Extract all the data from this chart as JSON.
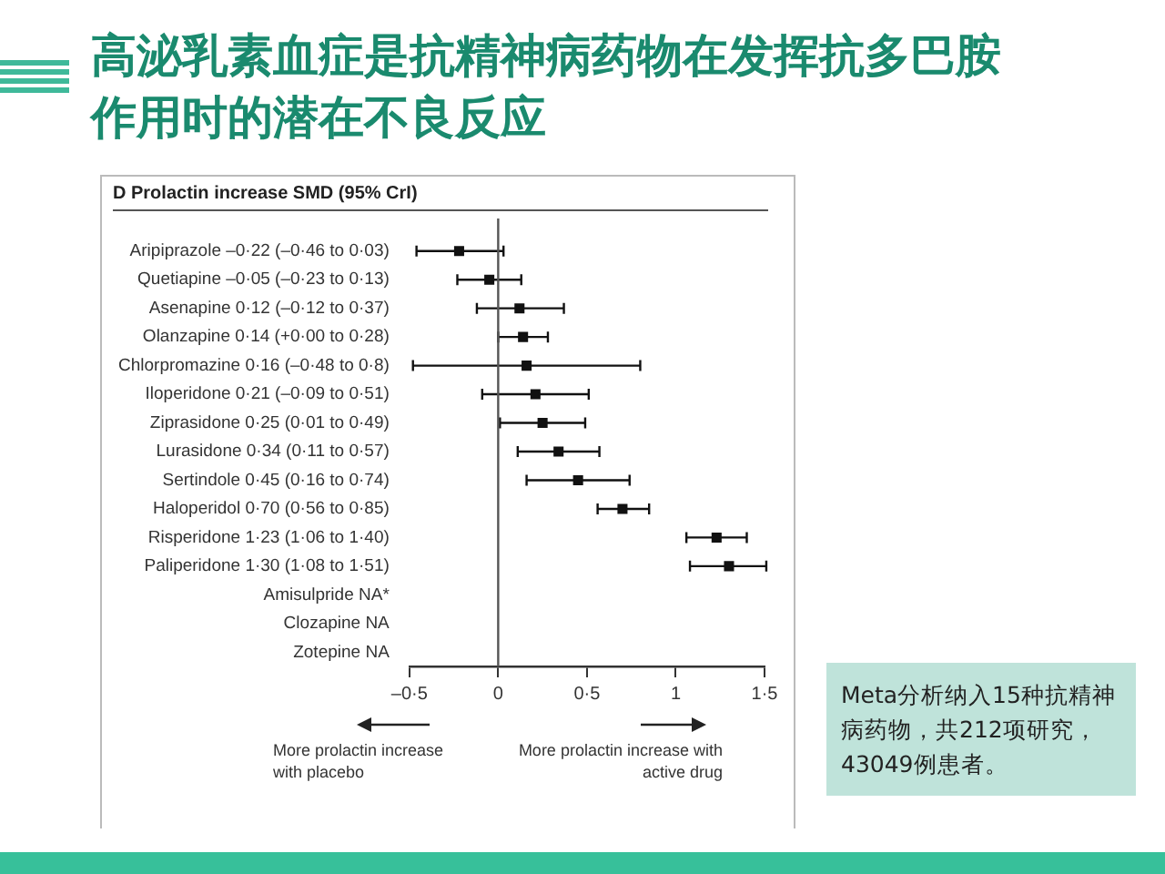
{
  "chart_data": {
    "type": "scatter",
    "orientation": "horizontal",
    "title": "高泌乳素血症是抗精神病药物在发挥抗多巴胺作用时的潜在不良反应",
    "subtitle": "D Prolactin increase SMD (95% CrI)",
    "categories": [
      "Aripiprazole –0·22 (–0·46 to 0·03)",
      "Quetiapine –0·05 (–0·23 to 0·13)",
      "Asenapine 0·12 (–0·12 to 0·37)",
      "Olanzapine 0·14 (+0·00 to 0·28)",
      "Chlorpromazine 0·16 (–0·48 to 0·8)",
      "Iloperidone 0·21 (–0·09 to 0·51)",
      "Ziprasidone 0·25 (0·01 to 0·49)",
      "Lurasidone 0·34 (0·11 to 0·57)",
      "Sertindole 0·45 (0·16 to 0·74)",
      "Haloperidol 0·70 (0·56 to 0·85)",
      "Risperidone 1·23 (1·06 to 1·40)",
      "Paliperidone 1·30 (1·08 to 1·51)",
      "Amisulpride NA*",
      "Clozapine NA",
      "Zotepine NA"
    ],
    "series": [
      {
        "color": "#111111",
        "values": [
          -0.22,
          -0.05,
          0.12,
          0.14,
          0.16,
          0.21,
          0.25,
          0.34,
          0.45,
          0.7,
          1.23,
          1.3,
          null,
          null,
          null
        ],
        "errors": [
          [
            -0.46,
            0.03
          ],
          [
            -0.23,
            0.13
          ],
          [
            -0.12,
            0.37
          ],
          [
            0.0,
            0.28
          ],
          [
            -0.48,
            0.8
          ],
          [
            -0.09,
            0.51
          ],
          [
            0.01,
            0.49
          ],
          [
            0.11,
            0.57
          ],
          [
            0.16,
            0.74
          ],
          [
            0.56,
            0.85
          ],
          [
            1.06,
            1.4
          ],
          [
            1.08,
            1.51
          ],
          null,
          null,
          null
        ]
      }
    ],
    "xlim": [
      -0.5,
      1.5
    ],
    "xticks": [
      {
        "value": -0.5,
        "label": "–0·5"
      },
      0,
      {
        "value": 0.5,
        "label": "0·5"
      },
      1,
      {
        "value": 1.5,
        "label": "1·5"
      }
    ],
    "ref_lines": [
      {
        "axis": "x",
        "value": 0,
        "color": "#555555"
      }
    ],
    "marker": "square",
    "grid": false,
    "legend": false,
    "annotations": [
      "More prolactin increase with placebo",
      "More prolactin increase with active drug",
      "Meta分析纳入15种抗精神病药物，共212项研究，43049例患者。"
    ]
  }
}
